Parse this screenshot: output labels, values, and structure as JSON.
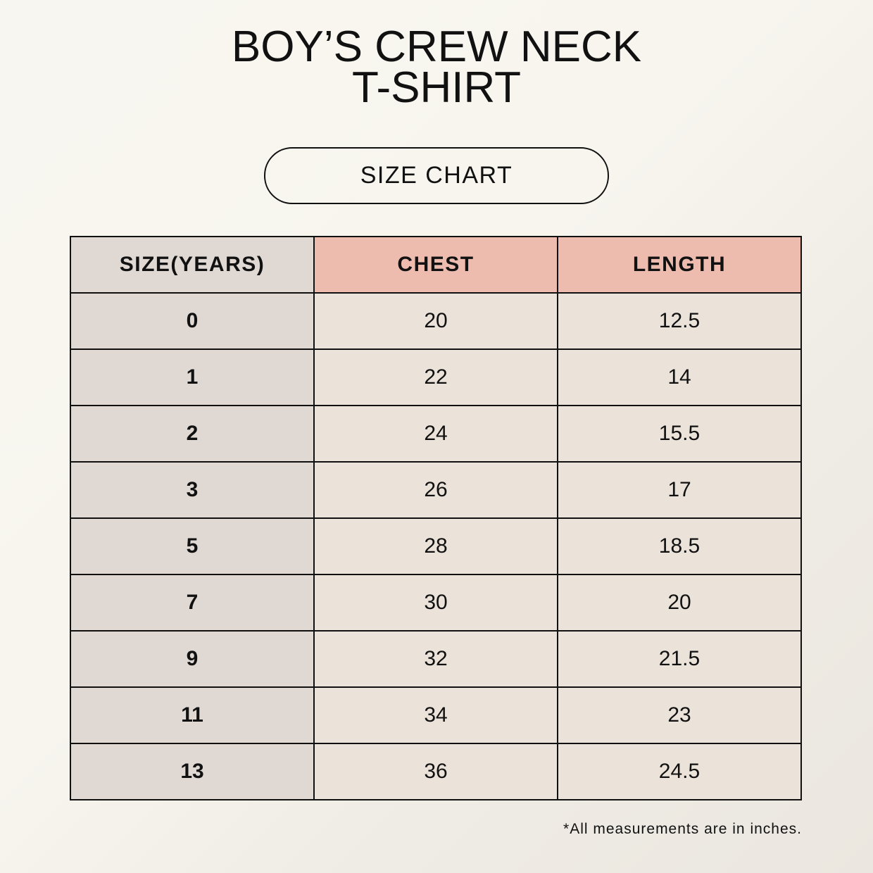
{
  "title": {
    "line1": "BOY’S CREW NECK",
    "line2": "T-SHIRT"
  },
  "badge": "SIZE CHART",
  "table": {
    "headers": [
      "SIZE(YEARS)",
      "CHEST",
      "LENGTH"
    ],
    "rows": [
      [
        "0",
        "20",
        "12.5"
      ],
      [
        "1",
        "22",
        "14"
      ],
      [
        "2",
        "24",
        "15.5"
      ],
      [
        "3",
        "26",
        "17"
      ],
      [
        "5",
        "28",
        "18.5"
      ],
      [
        "7",
        "30",
        "20"
      ],
      [
        "9",
        "32",
        "21.5"
      ],
      [
        "11",
        "34",
        "23"
      ],
      [
        "13",
        "36",
        "24.5"
      ]
    ]
  },
  "footnote": "*All measurements are in inches.",
  "colors": {
    "size_column": "#e0d9d3",
    "header_accent": "#edbcae",
    "value_cells": "#ebe3d9"
  }
}
